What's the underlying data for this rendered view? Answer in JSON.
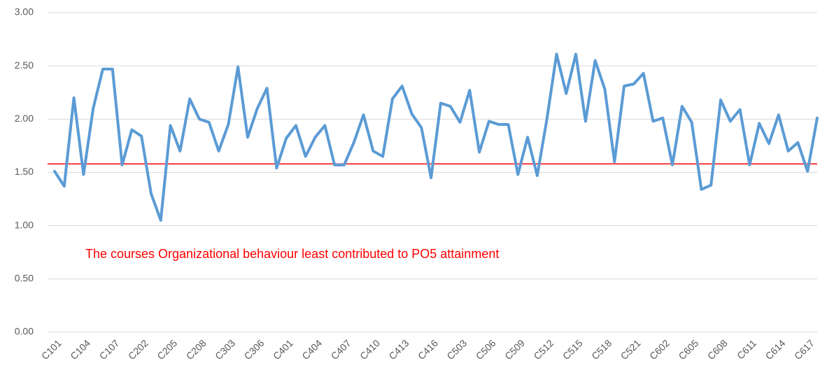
{
  "chart_data": {
    "type": "line",
    "categories": [
      "C101",
      null,
      null,
      "C104",
      null,
      null,
      "C107",
      null,
      null,
      "C202",
      null,
      null,
      "C205",
      null,
      null,
      "C208",
      null,
      null,
      "C303",
      null,
      null,
      "C306",
      null,
      null,
      "C401",
      null,
      null,
      "C404",
      null,
      null,
      "C407",
      null,
      null,
      "C410",
      null,
      null,
      "C413",
      null,
      null,
      "C416",
      null,
      null,
      "C503",
      null,
      null,
      "C506",
      null,
      null,
      "C509",
      null,
      null,
      "C512",
      null,
      null,
      "C515",
      null,
      null,
      "C518",
      null,
      null,
      "C521",
      null,
      null,
      "C602",
      null,
      null,
      "C605",
      null,
      null,
      "C608",
      null,
      null,
      "C611",
      null,
      null,
      "C614",
      null,
      null,
      "C617",
      null
    ],
    "series": [
      {
        "color": "#5b9bd5",
        "values": [
          1.51,
          1.37,
          2.2,
          1.48,
          2.1,
          2.47,
          2.47,
          1.57,
          1.9,
          1.84,
          1.3,
          1.05,
          1.94,
          1.7,
          2.19,
          2.0,
          1.97,
          1.7,
          1.95,
          2.49,
          1.83,
          2.1,
          2.29,
          1.54,
          1.82,
          1.94,
          1.65,
          1.83,
          1.94,
          1.57,
          1.57,
          1.78,
          2.04,
          1.7,
          1.65,
          2.19,
          2.31,
          2.05,
          1.92,
          1.45,
          2.15,
          2.12,
          1.97,
          2.27,
          1.69,
          1.98,
          1.95,
          1.95,
          1.48,
          1.83,
          1.47,
          2.0,
          2.61,
          2.24,
          2.61,
          1.98,
          2.55,
          2.28,
          1.6,
          2.31,
          2.33,
          2.43,
          1.98,
          2.01,
          1.57,
          2.12,
          1.97,
          1.34,
          1.38,
          2.18,
          1.98,
          2.09,
          1.57,
          1.96,
          1.77,
          2.04,
          1.7,
          1.78,
          1.51,
          2.01
        ]
      }
    ],
    "reference_line": {
      "value": 1.58,
      "color": "#ff0000"
    },
    "annotation": "The courses Organizational behaviour least contributed to PO5 attainment",
    "ylim": [
      0,
      3
    ],
    "yticks": [
      {
        "value": 0,
        "label": "0.00"
      },
      {
        "value": 0.5,
        "label": "0.50"
      },
      {
        "value": 1,
        "label": "1.00"
      },
      {
        "value": 1.5,
        "label": "1.50"
      },
      {
        "value": 2,
        "label": "2.00"
      },
      {
        "value": 2.5,
        "label": "2.50"
      },
      {
        "value": 3,
        "label": "3.00"
      }
    ],
    "grid": true
  }
}
